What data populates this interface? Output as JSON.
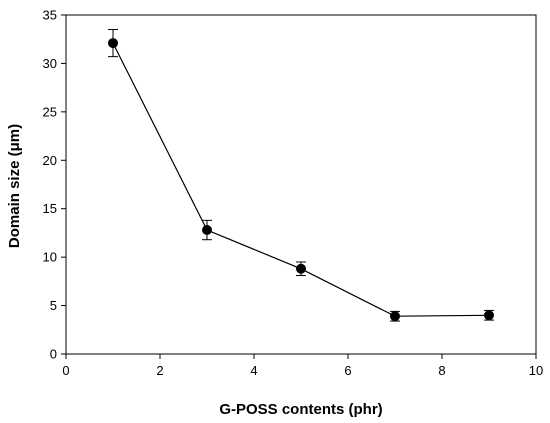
{
  "chart_data": {
    "type": "line",
    "xlabel": "G-POSS contents (phr)",
    "ylabel": "Domain size (μm)",
    "xlim": [
      0,
      10
    ],
    "ylim": [
      0,
      35
    ],
    "x_ticks": [
      0,
      2,
      4,
      6,
      8,
      10
    ],
    "y_ticks": [
      0,
      5,
      10,
      15,
      20,
      25,
      30,
      35
    ],
    "grid": false,
    "series": [
      {
        "x": [
          1,
          3,
          5,
          7,
          9
        ],
        "values": [
          32.1,
          12.8,
          8.8,
          3.9,
          4.0
        ],
        "error": [
          1.4,
          1.0,
          0.7,
          0.5,
          0.5
        ],
        "marker": "filled-circle",
        "color": "#000000"
      }
    ]
  }
}
